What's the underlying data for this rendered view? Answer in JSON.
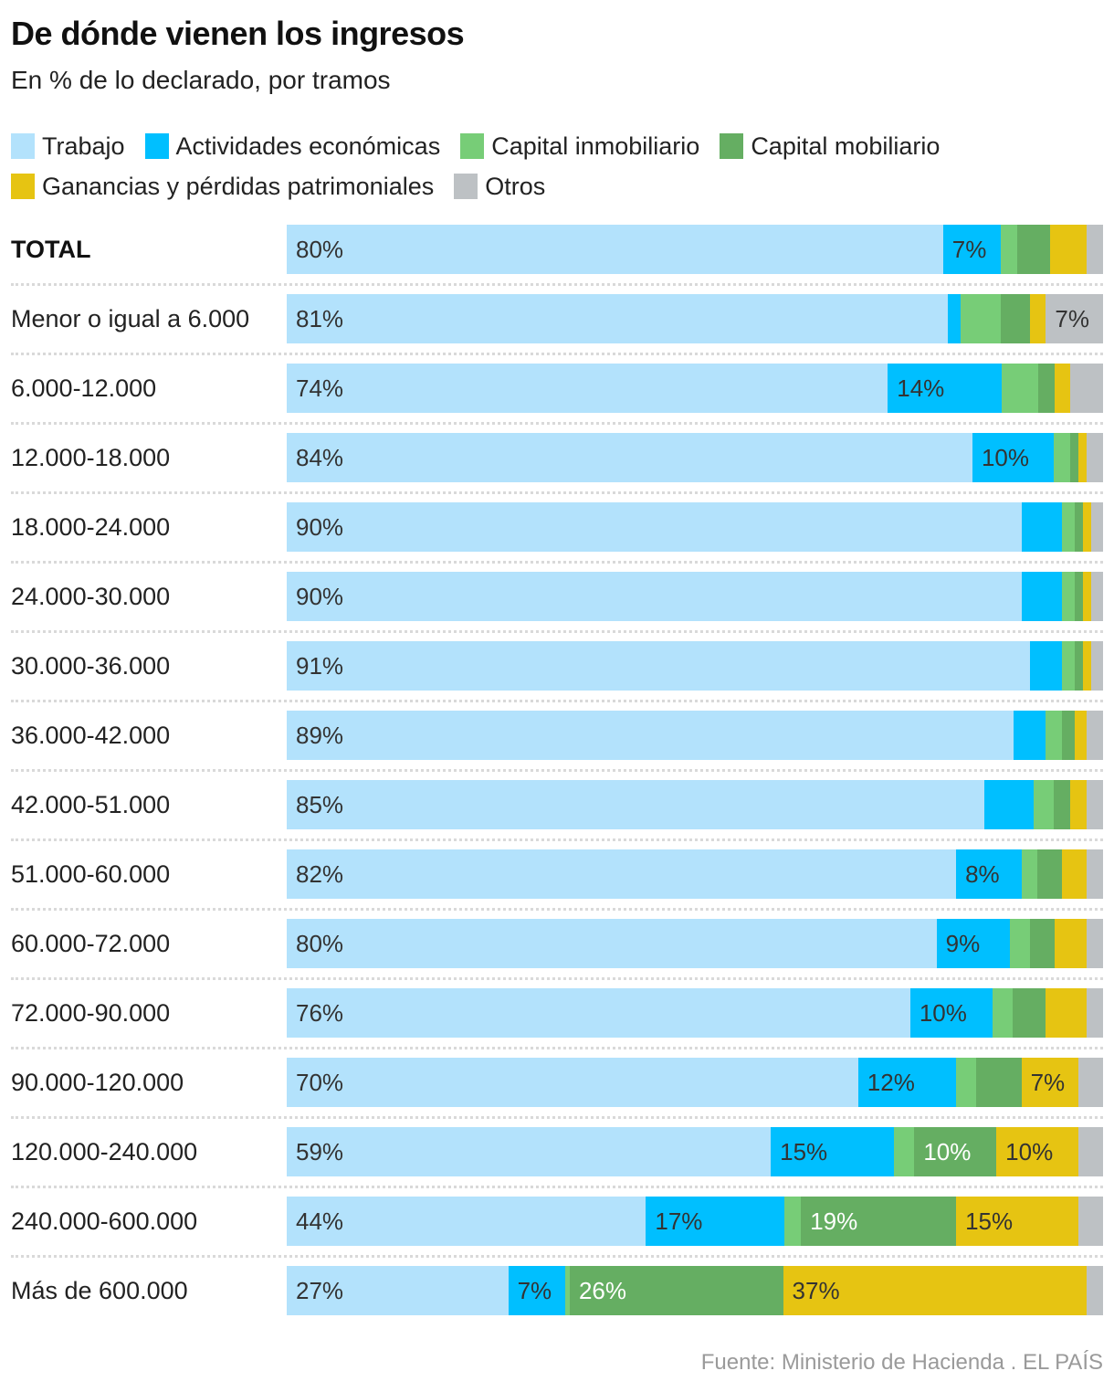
{
  "header": {
    "title": "De dónde vienen los ingresos",
    "subtitle": "En % de lo declarado, por tramos"
  },
  "legend": [
    {
      "label": "Trabajo",
      "color": "#b3e2fc"
    },
    {
      "label": "Actividades económicas",
      "color": "#00bfff"
    },
    {
      "label": "Capital inmobiliario",
      "color": "#77cd77"
    },
    {
      "label": "Capital mobiliario",
      "color": "#65ae62"
    },
    {
      "label": "Ganancias y pérdidas patrimoniales",
      "color": "#e6c412"
    },
    {
      "label": "Otros",
      "color": "#bdc1c4"
    }
  ],
  "footer": {
    "source": "Fuente: Ministerio de Hacienda . EL PAÍS"
  },
  "chart_data": {
    "type": "bar",
    "orientation": "horizontal",
    "stacked": true,
    "title": "De dónde vienen los ingresos",
    "subtitle": "En % de lo declarado, por tramos",
    "xlabel": "",
    "ylabel": "",
    "xlim": [
      0,
      100
    ],
    "grid": false,
    "legend_position": "top-left",
    "categories": [
      "TOTAL",
      "Menor o igual a 6.000",
      "6.000-12.000",
      "12.000-18.000",
      "18.000-24.000",
      "24.000-30.000",
      "30.000-36.000",
      "36.000-42.000",
      "42.000-51.000",
      "51.000-60.000",
      "60.000-72.000",
      "72.000-90.000",
      "90.000-120.000",
      "120.000-240.000",
      "240.000-600.000",
      "Más de 600.000"
    ],
    "bold_categories": [
      "TOTAL"
    ],
    "series": [
      {
        "name": "Trabajo",
        "color": "#b3e2fc",
        "values": [
          80,
          81,
          74,
          84,
          90,
          90,
          91,
          89,
          85,
          82,
          80,
          76,
          70,
          59,
          44,
          27
        ],
        "labels": [
          "80%",
          "81%",
          "74%",
          "84%",
          "90%",
          "90%",
          "91%",
          "89%",
          "85%",
          "82%",
          "80%",
          "76%",
          "70%",
          "59%",
          "44%",
          "27%"
        ]
      },
      {
        "name": "Actividades económicas",
        "color": "#00bfff",
        "values": [
          7,
          1.5,
          14,
          10,
          5,
          5,
          4,
          4,
          6,
          8,
          9,
          10,
          12,
          15,
          17,
          7
        ],
        "labels": [
          "7%",
          "",
          "14%",
          "10%",
          "",
          "",
          "",
          "",
          "",
          "8%",
          "9%",
          "10%",
          "12%",
          "15%",
          "17%",
          "7%"
        ]
      },
      {
        "name": "Capital inmobiliario",
        "color": "#77cd77",
        "values": [
          2,
          5,
          4.5,
          2,
          1.5,
          1.5,
          1.5,
          2,
          2.5,
          2,
          2.5,
          2.5,
          2.5,
          2.5,
          2,
          0.5
        ],
        "labels": [
          "",
          "",
          "",
          "",
          "",
          "",
          "",
          "",
          "",
          "",
          "",
          "",
          "",
          "",
          "",
          ""
        ]
      },
      {
        "name": "Capital mobiliario",
        "color": "#65ae62",
        "values": [
          4,
          3.5,
          2,
          1,
          1,
          1,
          1,
          1.5,
          2,
          3,
          3,
          4,
          5.5,
          10,
          19,
          26
        ],
        "labels": [
          "",
          "",
          "",
          "",
          "",
          "",
          "",
          "",
          "",
          "",
          "",
          "",
          "",
          "10%",
          "19%",
          "26%"
        ],
        "label_color": "#ffffff"
      },
      {
        "name": "Ganancias y pérdidas patrimoniales",
        "color": "#e6c412",
        "values": [
          4.5,
          2,
          2,
          1,
          1,
          1,
          1,
          1.5,
          2,
          3,
          4,
          5,
          7,
          10,
          15,
          37
        ],
        "labels": [
          "",
          "",
          "",
          "",
          "",
          "",
          "",
          "",
          "",
          "",
          "",
          "",
          "7%",
          "10%",
          "15%",
          "37%"
        ]
      },
      {
        "name": "Otros",
        "color": "#bdc1c4",
        "values": [
          2,
          7,
          4,
          2,
          1.5,
          1.5,
          1.5,
          2,
          2,
          2,
          2,
          2,
          3,
          3,
          3,
          2
        ],
        "labels": [
          "",
          "7%",
          "",
          "",
          "",
          "",
          "",
          "",
          "",
          "",
          "",
          "",
          "",
          "",
          "",
          ""
        ]
      }
    ]
  }
}
